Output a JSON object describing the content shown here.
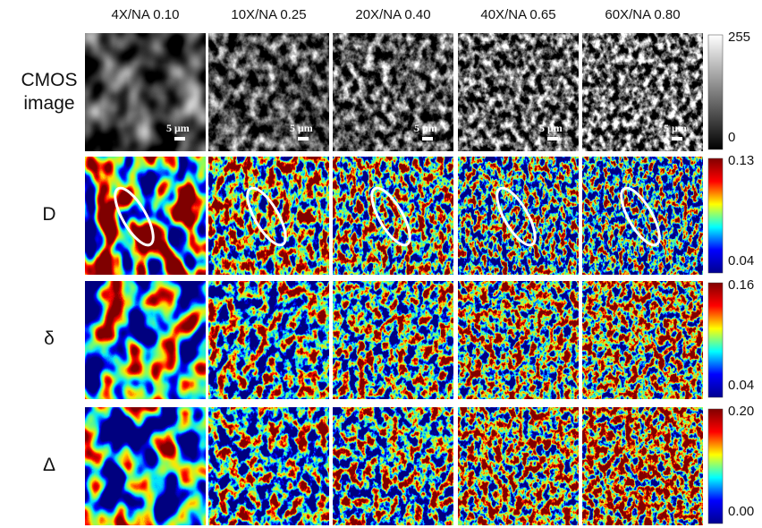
{
  "columns": [
    "4X/NA 0.10",
    "10X/NA 0.25",
    "20X/NA 0.40",
    "40X/NA 0.65",
    "60X/NA 0.80"
  ],
  "rows": [
    {
      "label": "CMOS image",
      "cbar_max": "255",
      "cbar_min": "0"
    },
    {
      "label": "D",
      "cbar_max": "0.13",
      "cbar_min": "0.04"
    },
    {
      "label": "δ",
      "cbar_max": "0.16",
      "cbar_min": "0.04"
    },
    {
      "label": "Δ",
      "cbar_max": "0.20",
      "cbar_min": "0.00"
    }
  ],
  "scale_bar": "5 μm"
}
